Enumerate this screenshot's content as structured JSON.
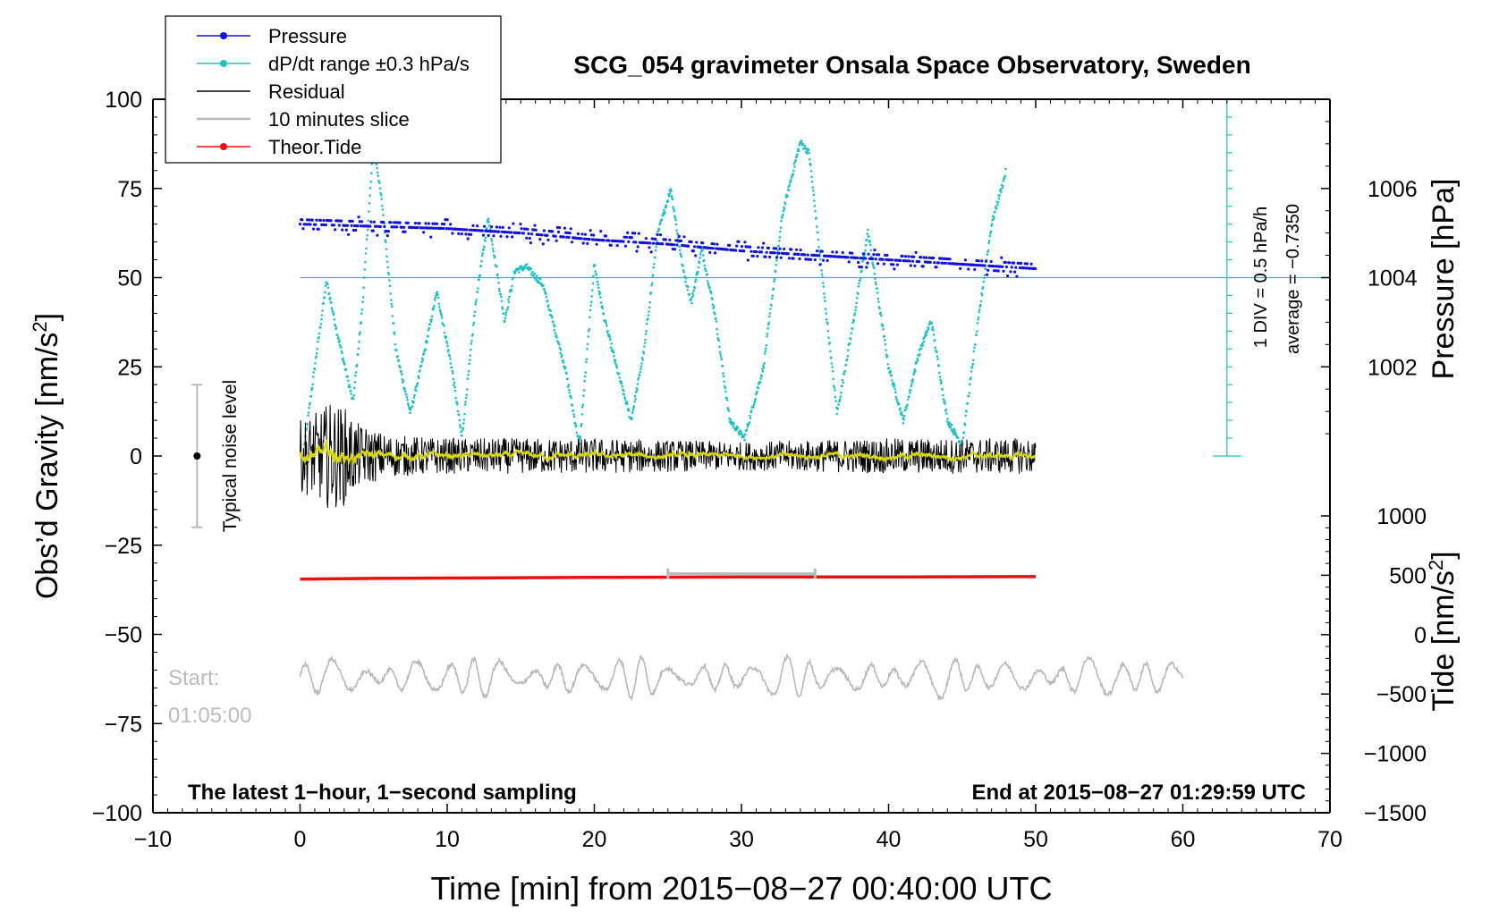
{
  "colors": {
    "pressure": "#1010e0",
    "dpdt": "#20c0c0",
    "residual": "#000000",
    "slice": "#b8b8b8",
    "tide": "#e81010",
    "smooth": "#d8d800",
    "axis": "#000000"
  },
  "chart_data": {
    "type": "line",
    "title": "SCG_054 gravimeter Onsala Space Observatory, Sweden",
    "xlabel": "Time [min] from 2015−08−27 00:40:00 UTC",
    "ylabel": "Obs’d Gravity [nm/s",
    "ylabel_sup": "2",
    "ylabel_close": "]",
    "y2label": "Pressure [hPa]",
    "y3label": "Tide [nm/s",
    "y3label_sup": "2",
    "y3label_close": "]",
    "xlim": [
      -10,
      70
    ],
    "ylim": [
      -100,
      100
    ],
    "pressure_ylim": [
      1000,
      1008
    ],
    "tide_ylim": [
      -1500,
      1000
    ],
    "x_ticks": [
      -10,
      0,
      10,
      20,
      30,
      40,
      50,
      60,
      70
    ],
    "x_tick_labels": [
      "−10",
      "0",
      "10",
      "20",
      "30",
      "40",
      "50",
      "60",
      "70"
    ],
    "y_ticks": [
      100,
      75,
      50,
      25,
      0,
      -25,
      -50,
      -75,
      -100
    ],
    "y_tick_labels": [
      "100",
      "75",
      "50",
      "25",
      "0",
      "−25",
      "−50",
      "−75",
      "−100"
    ],
    "pressure_ticks": [
      1006,
      1004,
      1002
    ],
    "pressure_tick_labels": [
      "1006",
      "1004",
      "1002"
    ],
    "tide_ticks": [
      1000,
      500,
      0,
      -500,
      -1000,
      -1500
    ],
    "tide_tick_labels": [
      "1000",
      "500",
      "0",
      "−500",
      "−1000",
      "−1500"
    ],
    "legend": [
      {
        "label": "Pressure",
        "series": "pressure"
      },
      {
        "label": "dP/dt range ±0.3 hPa/s",
        "series": "dpdt"
      },
      {
        "label": "Residual",
        "series": "residual"
      },
      {
        "label": "10 minutes slice",
        "series": "slice"
      },
      {
        "label": "Theor.Tide",
        "series": "tide"
      }
    ],
    "legend_position": "top-left",
    "annotations": {
      "bottom_left": "The latest 1−hour, 1−second sampling",
      "bottom_right": "End at 2015−08−27 01:29:59 UTC",
      "start_label": "Start:",
      "start_time": "01:05:00",
      "noise_label": "Typical noise level",
      "div_label": "1 DIV = 0.5 hPa/h",
      "average_label": "average = −0.7350"
    },
    "noise_bar": {
      "x": -7,
      "y_low": -20,
      "y_high": 20,
      "y_center": 0
    },
    "dpdt_scale": {
      "x": 63,
      "y_low": 0,
      "y_high": 100,
      "baseline": 50,
      "divisions": 20
    },
    "slice_marker": {
      "x_start": 25,
      "x_end": 35,
      "y": -33
    },
    "series": [
      {
        "name": "Pressure",
        "key": "pressure",
        "x": [
          0,
          5,
          10,
          15,
          20,
          25,
          30,
          35,
          40,
          45,
          50
        ],
        "values": [
          1005.2,
          1005.15,
          1005.1,
          1005.0,
          1004.85,
          1004.75,
          1004.6,
          1004.5,
          1004.4,
          1004.3,
          1004.2
        ]
      },
      {
        "name": "dP/dt range ±0.3 hPa/s",
        "key": "dpdt",
        "x": [
          0.3,
          1.0,
          1.8,
          2.5,
          3.6,
          4.2,
          5.0,
          5.6,
          6.5,
          7.5,
          8.5,
          9.3,
          10.3,
          11.0,
          12.0,
          12.8,
          13.9,
          14.6,
          15.4,
          16.5,
          18.0,
          19.0,
          20.0,
          20.6,
          21.5,
          22.5,
          23.4,
          24.3,
          25.2,
          26.0,
          26.6,
          27.3,
          28.2,
          29.2,
          30.2,
          31.5,
          32.8,
          34.0,
          34.6,
          35.5,
          36.5,
          37.5,
          38.6,
          40.0,
          41.0,
          42.0,
          42.9,
          44.0,
          45.0,
          46.0,
          47.0,
          48.0
        ],
        "values": [
          3,
          25,
          49,
          35,
          15,
          40,
          88,
          70,
          30,
          12,
          30,
          46,
          25,
          5,
          45,
          67,
          38,
          52,
          53,
          48,
          25,
          3,
          54,
          40,
          25,
          10,
          30,
          62,
          75,
          53,
          43,
          58,
          40,
          10,
          5,
          25,
          68,
          88,
          85,
          50,
          12,
          35,
          63,
          25,
          10,
          28,
          38,
          10,
          3,
          35,
          65,
          80
        ]
      },
      {
        "name": "Residual",
        "key": "residual",
        "x": [
          0,
          1,
          2,
          3,
          4,
          6,
          10,
          20,
          30,
          40,
          50
        ],
        "amplitude": [
          10,
          12,
          15,
          14,
          9,
          6,
          5,
          5,
          4,
          5,
          5
        ]
      },
      {
        "name": "10 minutes slice",
        "key": "slice",
        "x_range": [
          0,
          60
        ],
        "center": -62,
        "amplitude": 6
      },
      {
        "name": "Theor.Tide",
        "key": "tide",
        "x": [
          0,
          5,
          10,
          20,
          30,
          40,
          50
        ],
        "values": [
          -34.5,
          -34.3,
          -34.2,
          -34.0,
          -33.9,
          -33.9,
          -33.8
        ]
      }
    ]
  }
}
